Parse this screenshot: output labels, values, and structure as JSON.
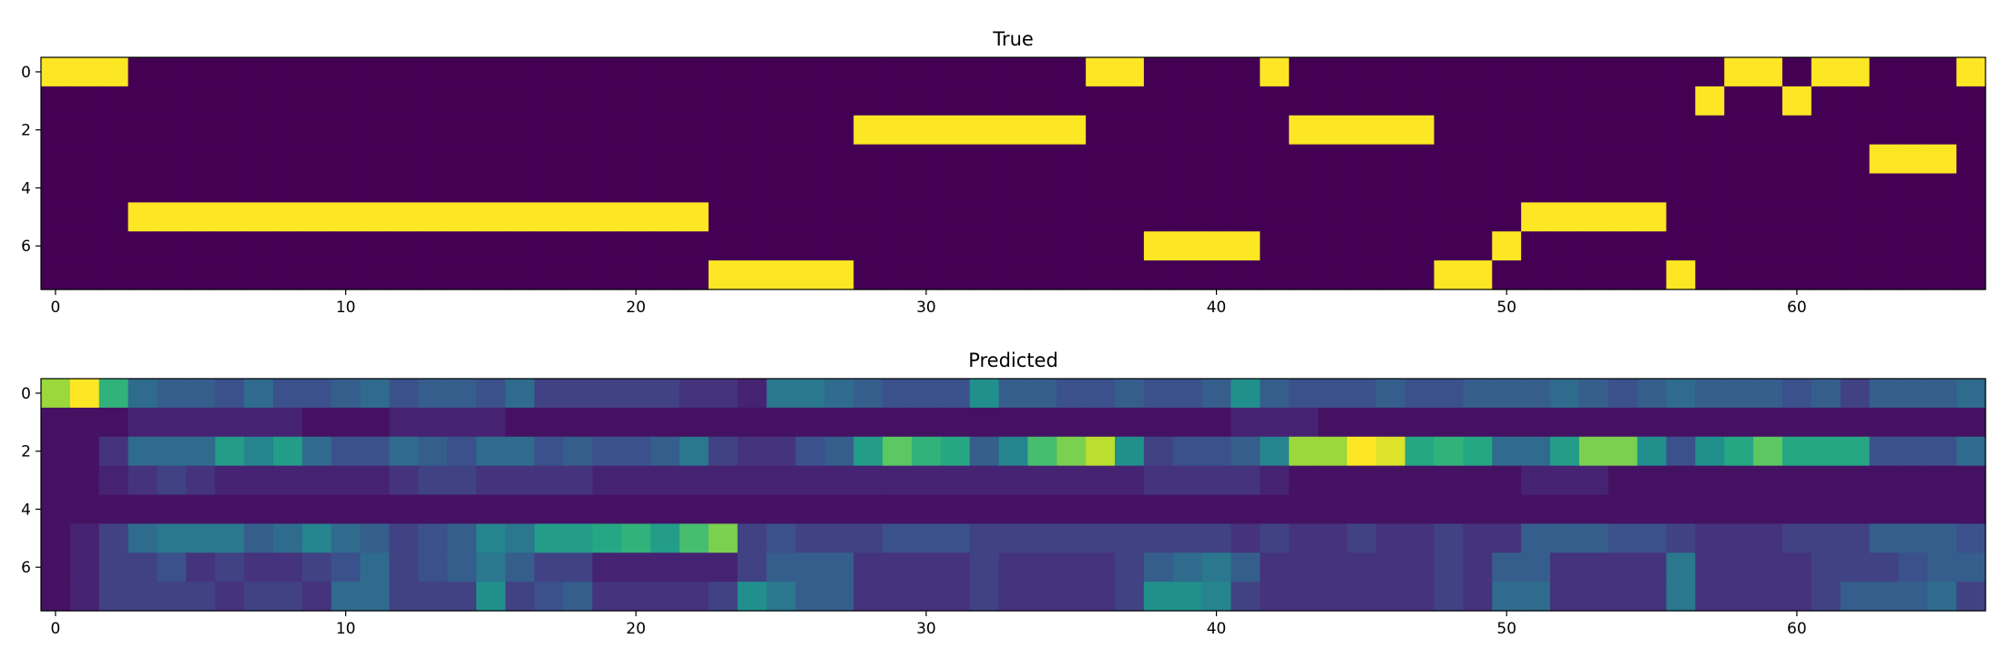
{
  "chart_data": [
    {
      "type": "heatmap",
      "title": "True",
      "xlabel": "",
      "ylabel": "",
      "xlim": [
        -0.5,
        66.5
      ],
      "ylim": [
        7.5,
        -0.5
      ],
      "xticks": [
        0,
        10,
        20,
        30,
        40,
        50,
        60
      ],
      "yticks": [
        0,
        2,
        4,
        6
      ],
      "colormap": "viridis",
      "value_range": [
        0,
        1
      ],
      "rows": 8,
      "cols": 67,
      "active_cells": [
        [
          0,
          0
        ],
        [
          0,
          1
        ],
        [
          0,
          2
        ],
        [
          5,
          3
        ],
        [
          5,
          4
        ],
        [
          5,
          5
        ],
        [
          5,
          6
        ],
        [
          5,
          7
        ],
        [
          5,
          8
        ],
        [
          5,
          9
        ],
        [
          5,
          10
        ],
        [
          5,
          11
        ],
        [
          5,
          12
        ],
        [
          5,
          13
        ],
        [
          5,
          14
        ],
        [
          5,
          15
        ],
        [
          5,
          16
        ],
        [
          5,
          17
        ],
        [
          5,
          18
        ],
        [
          5,
          19
        ],
        [
          5,
          20
        ],
        [
          5,
          21
        ],
        [
          5,
          22
        ],
        [
          7,
          23
        ],
        [
          7,
          24
        ],
        [
          7,
          25
        ],
        [
          7,
          26
        ],
        [
          7,
          27
        ],
        [
          2,
          28
        ],
        [
          2,
          29
        ],
        [
          2,
          30
        ],
        [
          2,
          31
        ],
        [
          2,
          32
        ],
        [
          2,
          33
        ],
        [
          2,
          34
        ],
        [
          2,
          35
        ],
        [
          0,
          36
        ],
        [
          0,
          37
        ],
        [
          6,
          38
        ],
        [
          6,
          39
        ],
        [
          6,
          40
        ],
        [
          6,
          41
        ],
        [
          0,
          42
        ],
        [
          2,
          43
        ],
        [
          2,
          44
        ],
        [
          2,
          45
        ],
        [
          2,
          46
        ],
        [
          2,
          47
        ],
        [
          7,
          48
        ],
        [
          7,
          49
        ],
        [
          6,
          50
        ],
        [
          5,
          51
        ],
        [
          5,
          52
        ],
        [
          5,
          53
        ],
        [
          5,
          54
        ],
        [
          5,
          55
        ],
        [
          7,
          56
        ],
        [
          1,
          57
        ],
        [
          0,
          58
        ],
        [
          0,
          59
        ],
        [
          1,
          60
        ],
        [
          0,
          61
        ],
        [
          0,
          62
        ],
        [
          3,
          63
        ],
        [
          3,
          64
        ],
        [
          3,
          65
        ],
        [
          0,
          66
        ]
      ]
    },
    {
      "type": "heatmap",
      "title": "Predicted",
      "xlabel": "",
      "ylabel": "",
      "xlim": [
        -0.5,
        66.5
      ],
      "ylim": [
        7.5,
        -0.5
      ],
      "xticks": [
        0,
        10,
        20,
        30,
        40,
        50,
        60
      ],
      "yticks": [
        0,
        2,
        4,
        6
      ],
      "colormap": "viridis",
      "value_range": [
        0,
        1
      ],
      "rows": 8,
      "cols": 67,
      "values": [
        [
          0.85,
          1.0,
          0.65,
          0.35,
          0.3,
          0.3,
          0.25,
          0.35,
          0.25,
          0.25,
          0.3,
          0.35,
          0.25,
          0.3,
          0.3,
          0.25,
          0.35,
          0.2,
          0.2,
          0.2,
          0.2,
          0.2,
          0.15,
          0.15,
          0.1,
          0.4,
          0.4,
          0.35,
          0.3,
          0.25,
          0.25,
          0.25,
          0.5,
          0.3,
          0.3,
          0.25,
          0.25,
          0.3,
          0.25,
          0.25,
          0.3,
          0.5,
          0.3,
          0.25,
          0.25,
          0.25,
          0.3,
          0.25,
          0.25,
          0.3,
          0.3,
          0.3,
          0.35,
          0.3,
          0.25,
          0.3,
          0.35,
          0.3,
          0.3,
          0.3,
          0.25,
          0.3,
          0.2,
          0.3,
          0.3,
          0.3,
          0.35
        ],
        [
          0.05,
          0.05,
          0.05,
          0.1,
          0.1,
          0.1,
          0.1,
          0.1,
          0.1,
          0.05,
          0.05,
          0.05,
          0.1,
          0.1,
          0.1,
          0.1,
          0.05,
          0.05,
          0.05,
          0.05,
          0.05,
          0.05,
          0.05,
          0.05,
          0.05,
          0.05,
          0.05,
          0.05,
          0.05,
          0.05,
          0.05,
          0.05,
          0.05,
          0.05,
          0.05,
          0.05,
          0.05,
          0.05,
          0.05,
          0.05,
          0.05,
          0.1,
          0.1,
          0.1,
          0.05,
          0.05,
          0.05,
          0.05,
          0.05,
          0.05,
          0.05,
          0.05,
          0.05,
          0.05,
          0.05,
          0.05,
          0.05,
          0.05,
          0.05,
          0.05,
          0.05,
          0.05,
          0.05,
          0.05,
          0.05,
          0.05,
          0.05
        ],
        [
          0.05,
          0.05,
          0.15,
          0.35,
          0.35,
          0.35,
          0.55,
          0.45,
          0.55,
          0.35,
          0.25,
          0.25,
          0.35,
          0.3,
          0.25,
          0.35,
          0.35,
          0.25,
          0.3,
          0.25,
          0.25,
          0.3,
          0.4,
          0.2,
          0.15,
          0.15,
          0.25,
          0.3,
          0.55,
          0.75,
          0.65,
          0.6,
          0.3,
          0.45,
          0.7,
          0.8,
          0.9,
          0.5,
          0.2,
          0.25,
          0.25,
          0.3,
          0.45,
          0.85,
          0.85,
          1.0,
          0.95,
          0.6,
          0.65,
          0.6,
          0.35,
          0.35,
          0.55,
          0.8,
          0.8,
          0.5,
          0.25,
          0.5,
          0.6,
          0.75,
          0.6,
          0.6,
          0.6,
          0.25,
          0.25,
          0.25,
          0.35
        ],
        [
          0.05,
          0.05,
          0.1,
          0.15,
          0.2,
          0.15,
          0.1,
          0.1,
          0.1,
          0.1,
          0.1,
          0.1,
          0.15,
          0.2,
          0.2,
          0.15,
          0.15,
          0.15,
          0.15,
          0.1,
          0.1,
          0.1,
          0.1,
          0.1,
          0.1,
          0.1,
          0.1,
          0.1,
          0.1,
          0.1,
          0.1,
          0.1,
          0.1,
          0.1,
          0.1,
          0.1,
          0.1,
          0.1,
          0.15,
          0.15,
          0.15,
          0.15,
          0.1,
          0.05,
          0.05,
          0.05,
          0.05,
          0.05,
          0.05,
          0.05,
          0.05,
          0.1,
          0.1,
          0.1,
          0.05,
          0.05,
          0.05,
          0.05,
          0.05,
          0.05,
          0.05,
          0.05,
          0.05,
          0.05,
          0.05,
          0.05,
          0.05
        ],
        [
          0.05,
          0.05,
          0.05,
          0.05,
          0.05,
          0.05,
          0.05,
          0.05,
          0.05,
          0.05,
          0.05,
          0.05,
          0.05,
          0.05,
          0.05,
          0.05,
          0.05,
          0.05,
          0.05,
          0.05,
          0.05,
          0.05,
          0.05,
          0.05,
          0.05,
          0.05,
          0.05,
          0.05,
          0.05,
          0.05,
          0.05,
          0.05,
          0.05,
          0.05,
          0.05,
          0.05,
          0.05,
          0.05,
          0.05,
          0.05,
          0.05,
          0.05,
          0.05,
          0.05,
          0.05,
          0.05,
          0.05,
          0.05,
          0.05,
          0.05,
          0.05,
          0.05,
          0.05,
          0.05,
          0.05,
          0.05,
          0.05,
          0.05,
          0.05,
          0.05,
          0.05,
          0.05,
          0.05,
          0.05,
          0.05,
          0.05,
          0.05
        ],
        [
          0.05,
          0.1,
          0.2,
          0.35,
          0.4,
          0.4,
          0.4,
          0.3,
          0.35,
          0.45,
          0.35,
          0.3,
          0.2,
          0.25,
          0.3,
          0.45,
          0.4,
          0.55,
          0.55,
          0.6,
          0.65,
          0.55,
          0.7,
          0.8,
          0.2,
          0.25,
          0.2,
          0.2,
          0.2,
          0.25,
          0.25,
          0.25,
          0.2,
          0.2,
          0.2,
          0.2,
          0.2,
          0.2,
          0.2,
          0.2,
          0.2,
          0.15,
          0.2,
          0.15,
          0.15,
          0.2,
          0.15,
          0.15,
          0.2,
          0.15,
          0.15,
          0.3,
          0.3,
          0.3,
          0.25,
          0.25,
          0.2,
          0.15,
          0.15,
          0.15,
          0.2,
          0.2,
          0.2,
          0.3,
          0.3,
          0.3,
          0.25
        ],
        [
          0.05,
          0.1,
          0.2,
          0.2,
          0.25,
          0.15,
          0.2,
          0.15,
          0.15,
          0.2,
          0.25,
          0.35,
          0.2,
          0.25,
          0.3,
          0.4,
          0.3,
          0.2,
          0.2,
          0.1,
          0.1,
          0.1,
          0.1,
          0.1,
          0.2,
          0.3,
          0.3,
          0.3,
          0.15,
          0.15,
          0.15,
          0.15,
          0.2,
          0.15,
          0.15,
          0.15,
          0.15,
          0.2,
          0.3,
          0.35,
          0.4,
          0.3,
          0.15,
          0.15,
          0.15,
          0.15,
          0.15,
          0.15,
          0.2,
          0.15,
          0.3,
          0.3,
          0.15,
          0.15,
          0.15,
          0.15,
          0.4,
          0.15,
          0.15,
          0.15,
          0.15,
          0.2,
          0.2,
          0.2,
          0.25,
          0.3,
          0.3
        ],
        [
          0.05,
          0.1,
          0.2,
          0.2,
          0.2,
          0.2,
          0.15,
          0.2,
          0.2,
          0.15,
          0.35,
          0.35,
          0.2,
          0.2,
          0.2,
          0.5,
          0.2,
          0.25,
          0.3,
          0.15,
          0.15,
          0.15,
          0.15,
          0.2,
          0.5,
          0.4,
          0.3,
          0.3,
          0.15,
          0.15,
          0.15,
          0.15,
          0.2,
          0.15,
          0.15,
          0.15,
          0.15,
          0.2,
          0.5,
          0.5,
          0.45,
          0.2,
          0.15,
          0.15,
          0.15,
          0.15,
          0.15,
          0.15,
          0.2,
          0.15,
          0.35,
          0.35,
          0.15,
          0.15,
          0.15,
          0.15,
          0.4,
          0.15,
          0.15,
          0.15,
          0.15,
          0.2,
          0.3,
          0.3,
          0.3,
          0.35,
          0.2
        ]
      ]
    }
  ]
}
